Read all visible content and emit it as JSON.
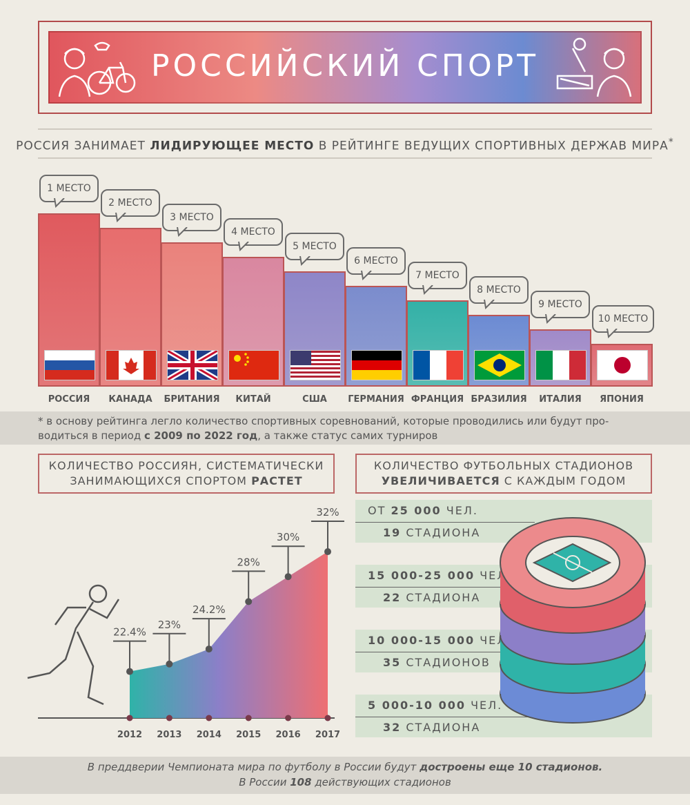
{
  "header": {
    "title": "РОССИЙСКИЙ СПОРТ"
  },
  "subtitle": {
    "pre": "РОССИЯ ЗАНИМАЕТ ",
    "bold": "ЛИДИРУЮЩЕЕ МЕСТО",
    "post": " В РЕЙТИНГЕ ВЕДУЩИХ СПОРТИВНЫХ ДЕРЖАВ МИРА",
    "star": "*"
  },
  "ranking": [
    {
      "place": "1 МЕСТО",
      "country": "РОССИЯ",
      "flag": "russia"
    },
    {
      "place": "2 МЕСТО",
      "country": "КАНАДА",
      "flag": "canada"
    },
    {
      "place": "3 МЕСТО",
      "country": "БРИТАНИЯ",
      "flag": "britain"
    },
    {
      "place": "4 МЕСТО",
      "country": "КИТАЙ",
      "flag": "china"
    },
    {
      "place": "5 МЕСТО",
      "country": "США",
      "flag": "usa"
    },
    {
      "place": "6 МЕСТО",
      "country": "ГЕРМАНИЯ",
      "flag": "germany"
    },
    {
      "place": "7 МЕСТО",
      "country": "ФРАНЦИЯ",
      "flag": "france"
    },
    {
      "place": "8 МЕСТО",
      "country": "БРАЗИЛИЯ",
      "flag": "brazil"
    },
    {
      "place": "9 МЕСТО",
      "country": "ИТАЛИЯ",
      "flag": "italy"
    },
    {
      "place": "10 МЕСТО",
      "country": "ЯПОНИЯ",
      "flag": "japan"
    }
  ],
  "footnote": {
    "star": "*",
    "pre": " в основу рейтинга легло количество спортивных соревнований, которые проводились или будут про-",
    "line2_pre": "водиться в период ",
    "bold": "с 2009 по 2022 год",
    "line2_post": ", а также статус самих турниров"
  },
  "left_box": {
    "line1": "КОЛИЧЕСТВО РОССИЯН, СИСТЕМАТИЧЕСКИ",
    "line2_pre": "ЗАНИМАЮЩИХСЯ СПОРТОМ ",
    "line2_bold": "РАСТЕТ"
  },
  "right_box": {
    "line1": "КОЛИЧЕСТВО ФУТБОЛЬНЫХ СТАДИОНОВ",
    "line2_bold": "УВЕЛИЧИВАЕТСЯ",
    "line2_post": " С КАЖДЫМ ГОДОМ"
  },
  "chart_data": {
    "type": "area",
    "x": [
      "2012",
      "2013",
      "2014",
      "2015",
      "2016",
      "2017"
    ],
    "values": [
      22.4,
      23,
      24.2,
      28,
      30,
      32
    ],
    "labels": [
      "22.4%",
      "23%",
      "24.2%",
      "28%",
      "30%",
      "32%"
    ]
  },
  "stadiums": [
    {
      "capacity_pre": "ОТ ",
      "capacity_bold": "25 000",
      "capacity_post": " ЧЕЛ.",
      "count_bold": "19",
      "count_post": " СТАДИОНА"
    },
    {
      "capacity_pre": "",
      "capacity_bold": "15 000-25 000",
      "capacity_post": " ЧЕЛ.",
      "count_bold": "22",
      "count_post": " СТАДИОНА"
    },
    {
      "capacity_pre": "",
      "capacity_bold": "10 000-15 000",
      "capacity_post": " ЧЕЛ.",
      "count_bold": "35",
      "count_post": " СТАДИОНОВ"
    },
    {
      "capacity_pre": "",
      "capacity_bold": "5 000-10 000",
      "capacity_post": " ЧЕЛ.",
      "count_bold": "32",
      "count_post": " СТАДИОНА"
    }
  ],
  "footer": {
    "line1_pre": "В преддверии Чемпионата мира по футболу в России будут ",
    "line1_bold": "достроены еще 10 стадионов.",
    "line2_pre": "В России ",
    "line2_bold": "108",
    "line2_post": " действующих стадионов"
  }
}
